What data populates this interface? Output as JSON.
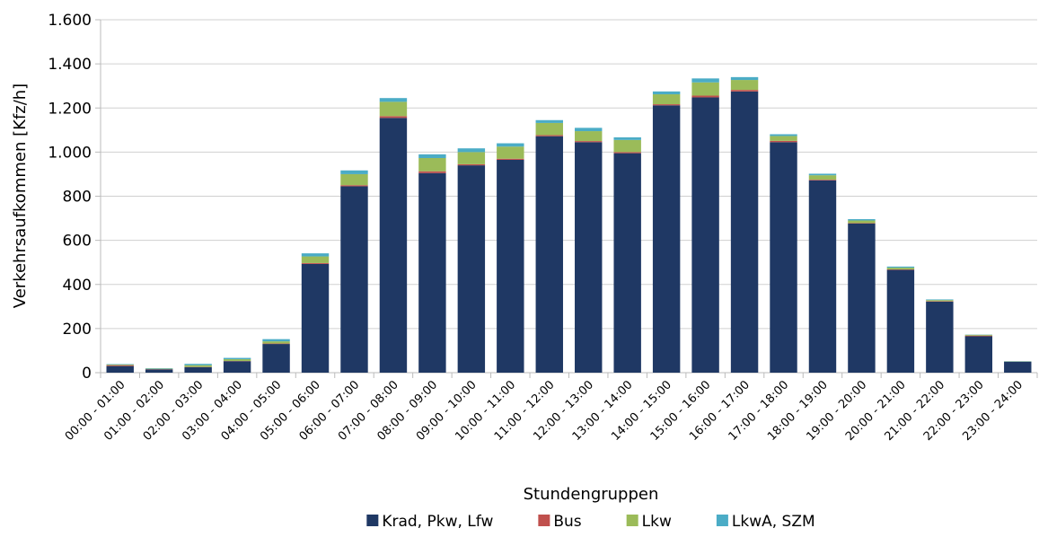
{
  "chart_data": {
    "type": "bar",
    "stacked": true,
    "x_label": "Stundengruppen",
    "y_label": "Verkehrsaufkommen [Kfz/h]",
    "categories": [
      "00:00 - 01:00",
      "01:00 - 02:00",
      "02:00 - 03:00",
      "03:00 - 04:00",
      "04:00 - 05:00",
      "05:00 - 06:00",
      "06:00 - 07:00",
      "07:00 - 08:00",
      "08:00 - 09:00",
      "09:00 - 10:00",
      "10:00 - 11:00",
      "11:00 - 12:00",
      "12:00 - 13:00",
      "13:00 - 14:00",
      "14:00 - 15:00",
      "15:00 - 16:00",
      "16:00 - 17:00",
      "17:00 - 18:00",
      "18:00 - 19:00",
      "19:00 - 20:00",
      "20:00 - 21:00",
      "21:00 - 22:00",
      "22:00 - 23:00",
      "23:00 - 24:00"
    ],
    "series": [
      {
        "name": "Krad, Pkw, Lfw",
        "color": "#1f3864",
        "values": [
          30,
          15,
          25,
          52,
          130,
          493,
          845,
          1155,
          905,
          940,
          965,
          1072,
          1045,
          995,
          1212,
          1248,
          1275,
          1045,
          872,
          676,
          466,
          322,
          165,
          50
        ]
      },
      {
        "name": "Bus",
        "color": "#c0504d",
        "values": [
          4,
          1,
          1,
          1,
          2,
          4,
          5,
          8,
          8,
          5,
          5,
          5,
          5,
          5,
          5,
          8,
          7,
          6,
          3,
          2,
          2,
          2,
          3,
          0
        ]
      },
      {
        "name": "Lkw",
        "color": "#9bbb59",
        "values": [
          3,
          2,
          8,
          8,
          10,
          30,
          50,
          65,
          60,
          55,
          55,
          55,
          45,
          55,
          45,
          60,
          45,
          22,
          20,
          12,
          8,
          5,
          4,
          1
        ]
      },
      {
        "name": "LkwA, SZM",
        "color": "#4bacc6",
        "values": [
          2,
          2,
          6,
          6,
          10,
          14,
          17,
          17,
          17,
          17,
          15,
          13,
          15,
          12,
          13,
          18,
          13,
          8,
          7,
          6,
          5,
          3,
          1,
          1
        ]
      }
    ],
    "ylim": [
      0,
      1600
    ],
    "yticks": [
      0,
      200,
      400,
      600,
      800,
      {
        "value": 1000,
        "label": "1.000"
      },
      {
        "value": 1200,
        "label": "1.200"
      },
      {
        "value": 1400,
        "label": "1.400"
      },
      {
        "value": 1600,
        "label": "1.600"
      }
    ],
    "grid": true,
    "legend": "bottom"
  }
}
